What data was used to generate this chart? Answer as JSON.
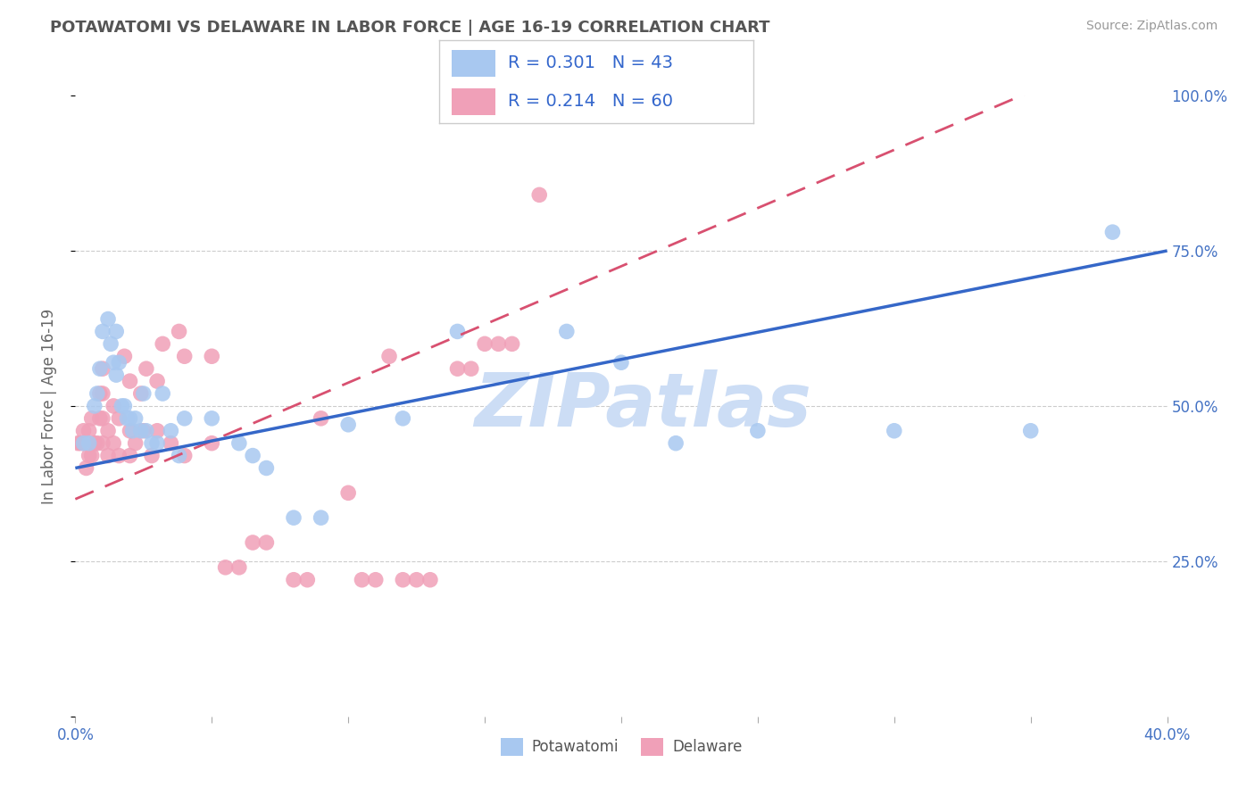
{
  "title": "POTAWATOMI VS DELAWARE IN LABOR FORCE | AGE 16-19 CORRELATION CHART",
  "source": "Source: ZipAtlas.com",
  "ylabel": "In Labor Force | Age 16-19",
  "xlim": [
    0.0,
    0.4
  ],
  "ylim": [
    0.0,
    1.0
  ],
  "legend_blue_label": "R = 0.301   N = 43",
  "legend_pink_label": "R = 0.214   N = 60",
  "potawatomi_color": "#a8c8f0",
  "delaware_color": "#f0a0b8",
  "trendline_blue_color": "#3567c8",
  "trendline_pink_color": "#d85070",
  "watermark": "ZIPatlas",
  "watermark_color": "#ccddf5",
  "potawatomi_name": "Potawatomi",
  "delaware_name": "Delaware",
  "pot_trendline": [
    0.4,
    0.75
  ],
  "del_trendline": [
    0.35,
    1.1
  ],
  "potawatomi_x": [
    0.003,
    0.005,
    0.007,
    0.008,
    0.009,
    0.01,
    0.012,
    0.013,
    0.014,
    0.015,
    0.015,
    0.016,
    0.017,
    0.018,
    0.019,
    0.02,
    0.021,
    0.022,
    0.024,
    0.025,
    0.026,
    0.028,
    0.03,
    0.032,
    0.035,
    0.038,
    0.04,
    0.05,
    0.06,
    0.065,
    0.07,
    0.08,
    0.09,
    0.1,
    0.12,
    0.14,
    0.18,
    0.2,
    0.22,
    0.25,
    0.3,
    0.35,
    0.38
  ],
  "potawatomi_y": [
    0.44,
    0.44,
    0.5,
    0.52,
    0.56,
    0.62,
    0.64,
    0.6,
    0.57,
    0.55,
    0.62,
    0.57,
    0.5,
    0.5,
    0.48,
    0.48,
    0.46,
    0.48,
    0.46,
    0.52,
    0.46,
    0.44,
    0.44,
    0.52,
    0.46,
    0.42,
    0.48,
    0.48,
    0.44,
    0.42,
    0.4,
    0.32,
    0.32,
    0.47,
    0.48,
    0.62,
    0.62,
    0.57,
    0.44,
    0.46,
    0.46,
    0.46,
    0.78
  ],
  "delaware_x": [
    0.001,
    0.002,
    0.003,
    0.004,
    0.005,
    0.005,
    0.006,
    0.006,
    0.007,
    0.008,
    0.009,
    0.009,
    0.01,
    0.01,
    0.01,
    0.01,
    0.012,
    0.012,
    0.014,
    0.014,
    0.016,
    0.016,
    0.018,
    0.02,
    0.02,
    0.02,
    0.022,
    0.024,
    0.025,
    0.026,
    0.028,
    0.03,
    0.03,
    0.032,
    0.035,
    0.038,
    0.04,
    0.04,
    0.05,
    0.05,
    0.055,
    0.06,
    0.065,
    0.07,
    0.08,
    0.085,
    0.09,
    0.1,
    0.105,
    0.11,
    0.115,
    0.12,
    0.125,
    0.13,
    0.14,
    0.145,
    0.15,
    0.155,
    0.16,
    0.17
  ],
  "delaware_y": [
    0.44,
    0.44,
    0.46,
    0.4,
    0.42,
    0.46,
    0.42,
    0.48,
    0.44,
    0.44,
    0.48,
    0.52,
    0.44,
    0.48,
    0.52,
    0.56,
    0.42,
    0.46,
    0.44,
    0.5,
    0.42,
    0.48,
    0.58,
    0.42,
    0.46,
    0.54,
    0.44,
    0.52,
    0.46,
    0.56,
    0.42,
    0.46,
    0.54,
    0.6,
    0.44,
    0.62,
    0.58,
    0.42,
    0.58,
    0.44,
    0.24,
    0.24,
    0.28,
    0.28,
    0.22,
    0.22,
    0.48,
    0.36,
    0.22,
    0.22,
    0.58,
    0.22,
    0.22,
    0.22,
    0.56,
    0.56,
    0.6,
    0.6,
    0.6,
    0.84
  ]
}
